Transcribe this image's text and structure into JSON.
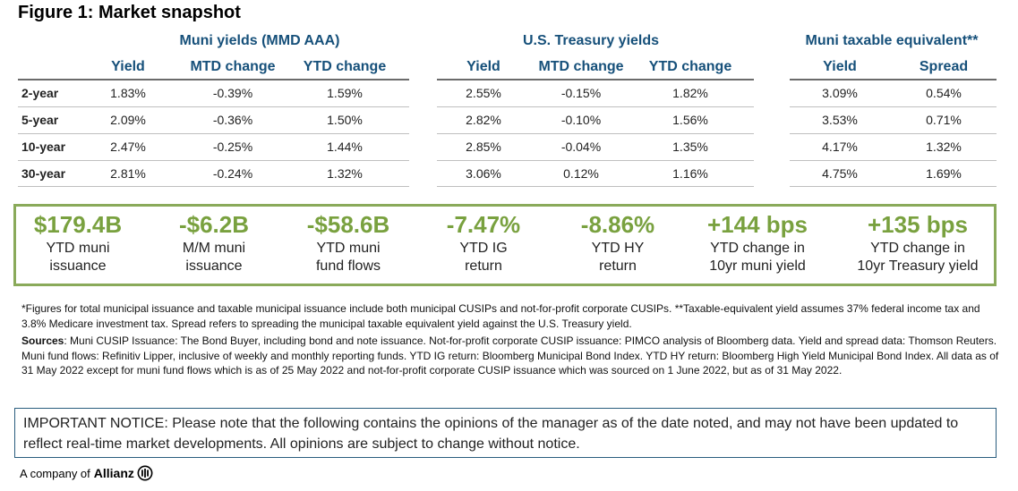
{
  "title": "Figure 1: Market snapshot",
  "groups": {
    "muni": "Muni yields (MMD AAA)",
    "ust": "U.S. Treasury yields",
    "tax": "Muni taxable equivalent**"
  },
  "headers": {
    "muni": [
      "Yield",
      "MTD change",
      "YTD change"
    ],
    "ust": [
      "Yield",
      "MTD change",
      "YTD change"
    ],
    "tax": [
      "Yield",
      "Spread"
    ]
  },
  "rows": [
    {
      "label": "2-year",
      "muni": [
        "1.83%",
        "-0.39%",
        "1.59%"
      ],
      "ust": [
        "2.55%",
        "-0.15%",
        "1.82%"
      ],
      "tax": [
        "3.09%",
        "0.54%"
      ]
    },
    {
      "label": "5-year",
      "muni": [
        "2.09%",
        "-0.36%",
        "1.50%"
      ],
      "ust": [
        "2.82%",
        "-0.10%",
        "1.56%"
      ],
      "tax": [
        "3.53%",
        "0.71%"
      ]
    },
    {
      "label": "10-year",
      "muni": [
        "2.47%",
        "-0.25%",
        "1.44%"
      ],
      "ust": [
        "2.85%",
        "-0.04%",
        "1.35%"
      ],
      "tax": [
        "4.17%",
        "1.32%"
      ]
    },
    {
      "label": "30-year",
      "muni": [
        "2.81%",
        "-0.24%",
        "1.32%"
      ],
      "ust": [
        "3.06%",
        "0.12%",
        "1.16%"
      ],
      "tax": [
        "4.75%",
        "1.69%"
      ]
    }
  ],
  "kpis": [
    {
      "value": "$179.4B",
      "line1": "YTD muni",
      "line2": "issuance"
    },
    {
      "value": "-$6.2B",
      "line1": "M/M muni",
      "line2": "issuance"
    },
    {
      "value": "-$58.6B",
      "line1": "YTD muni",
      "line2": "fund flows"
    },
    {
      "value": "-7.47%",
      "line1": "YTD IG",
      "line2": "return"
    },
    {
      "value": "-8.86%",
      "line1": "YTD HY",
      "line2": "return"
    },
    {
      "value": "+144 bps",
      "line1": "YTD change in",
      "line2": "10yr muni yield"
    },
    {
      "value": "+135 bps",
      "line1": "YTD change in",
      "line2": "10yr Treasury yield"
    }
  ],
  "footnote": "*Figures for total municipal issuance and taxable municipal issuance include both municipal CUSIPs and not-for-profit corporate CUSIPs. **Taxable-equivalent yield assumes 37% federal income tax and 3.8% Medicare investment tax. Spread refers to spreading the municipal taxable equivalent yield against the U.S. Treasury yield.",
  "sources_label": "Sources",
  "sources_text": ": Muni CUSIP Issuance: The Bond Buyer, including bond and note issuance. Not-for-profit corporate CUSIP issuance: PIMCO analysis of Bloomberg data. Yield and spread data: Thomson Reuters. Muni fund flows: Refinitiv Lipper, inclusive of weekly and monthly reporting funds. YTD IG return: Bloomberg Municipal Bond Index. YTD HY return: Bloomberg High Yield Municipal Bond Index. All data as of 31 May 2022 except for muni fund flows which is as of 25 May 2022 and not-for-profit corporate CUSIP issuance which was sourced on 1 June 2022, but as of 31 May 2022.",
  "notice": "IMPORTANT NOTICE: Please note that the following contains the opinions of the manager as of the date noted, and may not have been updated to reflect real-time market developments. All opinions are subject to change without notice.",
  "footer": {
    "prefix": "A company of",
    "brand": "Allianz"
  }
}
